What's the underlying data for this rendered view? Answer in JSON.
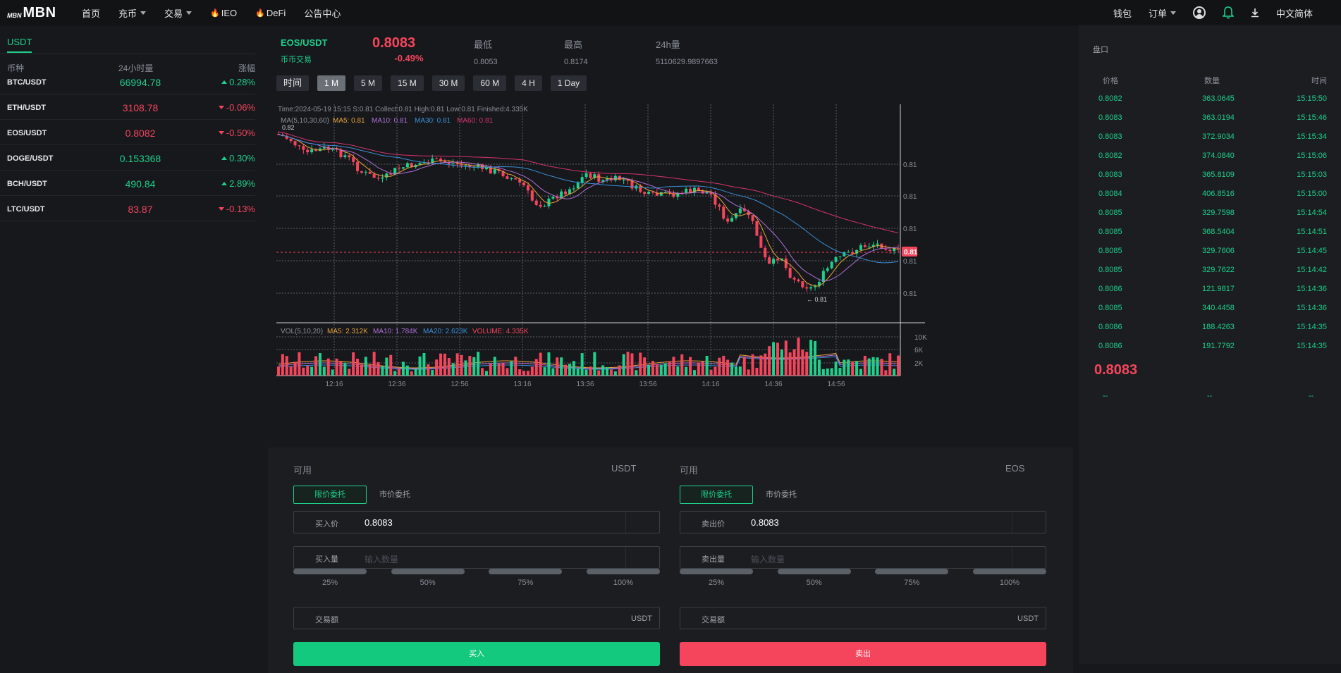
{
  "nav": {
    "logo_small": "MBN",
    "logo_big": "MBN",
    "items": [
      "首页",
      "充币",
      "交易",
      "IEO",
      "DeFi",
      "公告中心"
    ],
    "right": {
      "wallet": "钱包",
      "orders": "订单",
      "language": "中文简体"
    }
  },
  "market": {
    "tab": "USDT",
    "headers": {
      "coin": "币种",
      "volume": "24小时量",
      "change": "涨幅"
    },
    "rows": [
      {
        "symbol": "BTC/USDT",
        "price": "66994.78",
        "change": "0.28%",
        "dir": "up"
      },
      {
        "symbol": "ETH/USDT",
        "price": "3108.78",
        "change": "-0.06%",
        "dir": "down"
      },
      {
        "symbol": "EOS/USDT",
        "price": "0.8082",
        "change": "-0.50%",
        "dir": "down"
      },
      {
        "symbol": "DOGE/USDT",
        "price": "0.153368",
        "change": "0.30%",
        "dir": "up"
      },
      {
        "symbol": "BCH/USDT",
        "price": "490.84",
        "change": "2.89%",
        "dir": "up"
      },
      {
        "symbol": "LTC/USDT",
        "price": "83.87",
        "change": "-0.13%",
        "dir": "down"
      }
    ]
  },
  "ticker": {
    "pair": "EOS/USDT",
    "sub": "币币交易",
    "price": "0.8083",
    "change": "-0.49%",
    "low_label": "最低",
    "low": "0.8053",
    "high_label": "最高",
    "high": "0.8174",
    "vol_label": "24h量",
    "vol": "5110629.9897663"
  },
  "periods": [
    "时间",
    "1 M",
    "5 M",
    "15 M",
    "30 M",
    "60 M",
    "4 H",
    "1 Day"
  ],
  "chart_info": {
    "line1": "Time:2024-05-19 15:15   S:0.81    Collect:0.81     High:0.81     Low:0.81   Finished:4.335K",
    "ma_prefix": "MA(5,10,30,60)",
    "ma5": "MA5: 0.81",
    "ma10": "MA10: 0.81",
    "ma30": "MA30: 0.81",
    "ma60": "MA60: 0.81",
    "vol_prefix": "VOL(5,10,20)",
    "vma5": "MA5: 2.312K",
    "vma10": "MA10: 1.784K",
    "vma20": "MA20: 2.623K",
    "volume": "VOLUME: 4.335K",
    "y_labels": [
      "0.81",
      "0.81",
      "0.81",
      "0.81",
      "0.81"
    ],
    "current_tag": "0.81",
    "max_marker": "0.82",
    "min_marker": "← 0.81",
    "vol_labels": [
      "10K",
      "6K",
      "2K"
    ],
    "x_labels": [
      "12:16",
      "12:36",
      "12:56",
      "13:16",
      "13:36",
      "13:56",
      "14:16",
      "14:36",
      "14:56"
    ]
  },
  "buy": {
    "avail": "可用",
    "unit": "USDT",
    "tab_limit": "限价委托",
    "tab_market": "市价委托",
    "price_label": "买入价",
    "price": "0.8083",
    "qty_label": "买入量",
    "qty_placeholder": "输入数量",
    "pcts": [
      "25%",
      "50%",
      "75%",
      "100%"
    ],
    "amount_label": "交易额",
    "amount_unit": "USDT",
    "button": "买入"
  },
  "sell": {
    "avail": "可用",
    "unit": "EOS",
    "tab_limit": "限价委托",
    "tab_market": "市价委托",
    "price_label": "卖出价",
    "price": "0.8083",
    "qty_label": "卖出量",
    "qty_placeholder": "输入数量",
    "pcts": [
      "25%",
      "50%",
      "75%",
      "100%"
    ],
    "amount_label": "交易额",
    "amount_unit": "USDT",
    "button": "卖出"
  },
  "orderbook": {
    "title": "盘口",
    "cols": {
      "price": "价格",
      "qty": "数量",
      "time": "时间"
    },
    "rows": [
      {
        "price": "0.8082",
        "qty": "363.0645",
        "time": "15:15:50"
      },
      {
        "price": "0.8083",
        "qty": "363.0194",
        "time": "15:15:46"
      },
      {
        "price": "0.8083",
        "qty": "372.9034",
        "time": "15:15:34"
      },
      {
        "price": "0.8082",
        "qty": "374.0840",
        "time": "15:15:06"
      },
      {
        "price": "0.8083",
        "qty": "365.8109",
        "time": "15:15:03"
      },
      {
        "price": "0.8084",
        "qty": "406.8516",
        "time": "15:15:00"
      },
      {
        "price": "0.8085",
        "qty": "329.7598",
        "time": "15:14:54"
      },
      {
        "price": "0.8085",
        "qty": "368.5404",
        "time": "15:14:51"
      },
      {
        "price": "0.8085",
        "qty": "329.7606",
        "time": "15:14:45"
      },
      {
        "price": "0.8085",
        "qty": "329.7622",
        "time": "15:14:42"
      },
      {
        "price": "0.8086",
        "qty": "121.9817",
        "time": "15:14:36"
      },
      {
        "price": "0.8085",
        "qty": "340.4458",
        "time": "15:14:36"
      },
      {
        "price": "0.8086",
        "qty": "188.4263",
        "time": "15:14:35"
      },
      {
        "price": "0.8086",
        "qty": "191.7792",
        "time": "15:14:35"
      }
    ],
    "last_price": "0.8083",
    "dashes": [
      "--",
      "--",
      "--"
    ]
  },
  "colors": {
    "up": "#1fcf8b",
    "down": "#f5455c",
    "ma5": "#e8a33d",
    "ma10": "#b06fd6",
    "ma30": "#3a8fd6",
    "ma60": "#d6336c"
  }
}
